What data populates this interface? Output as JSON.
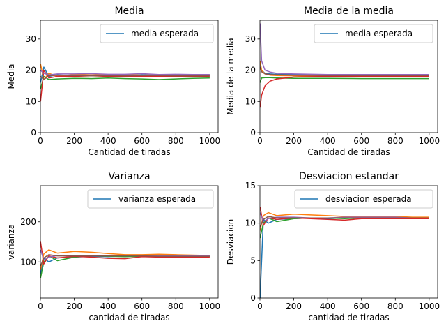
{
  "chart_data": [
    {
      "type": "line",
      "title": "Media",
      "xlabel": "Cantidad de tiradas",
      "ylabel": "Media",
      "xlim": [
        0,
        1050
      ],
      "ylim": [
        0,
        36
      ],
      "xticks": [
        0,
        200,
        400,
        600,
        800,
        1000
      ],
      "yticks": [
        0,
        10,
        20,
        30
      ],
      "legend": {
        "label": "media esperada",
        "placement": "top-right"
      },
      "expected_value": 18.5,
      "series": [
        {
          "color": "#1f77b4",
          "x": [
            1,
            20,
            50,
            100,
            200,
            300,
            400,
            500,
            600,
            700,
            800,
            900,
            1000
          ],
          "y": [
            16,
            21,
            18,
            18.5,
            18.2,
            18.4,
            18.5,
            18.3,
            18.5,
            18.4,
            18.3,
            18.4,
            18.4
          ]
        },
        {
          "color": "#ff7f0e",
          "x": [
            1,
            20,
            50,
            100,
            200,
            300,
            400,
            500,
            600,
            700,
            800,
            900,
            1000
          ],
          "y": [
            22,
            17,
            19,
            18,
            18.6,
            18.8,
            18.5,
            18.6,
            18.4,
            18.5,
            18.5,
            18.4,
            18.5
          ]
        },
        {
          "color": "#2ca02c",
          "x": [
            1,
            20,
            50,
            100,
            200,
            300,
            400,
            500,
            600,
            700,
            800,
            900,
            1000
          ],
          "y": [
            14,
            18,
            17,
            17.2,
            17.4,
            17.3,
            17.5,
            17.3,
            17.2,
            17.0,
            17.2,
            17.4,
            17.5
          ]
        },
        {
          "color": "#d62728",
          "x": [
            1,
            20,
            50,
            100,
            200,
            300,
            400,
            500,
            600,
            700,
            800,
            900,
            1000
          ],
          "y": [
            10,
            20,
            17.5,
            18,
            18,
            18.2,
            18,
            18.1,
            18,
            18.1,
            18,
            18.0,
            18.0
          ]
        },
        {
          "color": "#9467bd",
          "x": [
            1,
            20,
            50,
            100,
            200,
            300,
            400,
            500,
            600,
            700,
            800,
            900,
            1000
          ],
          "y": [
            20,
            19,
            18.5,
            18.8,
            18.8,
            18.9,
            18.7,
            18.7,
            18.9,
            18.6,
            18.7,
            18.6,
            18.6
          ]
        },
        {
          "color": "#8c564b",
          "x": [
            1,
            20,
            50,
            100,
            200,
            300,
            400,
            500,
            600,
            700,
            800,
            900,
            1000
          ],
          "y": [
            18,
            17,
            18.2,
            18.4,
            18.3,
            18.2,
            18.3,
            18.2,
            18.3,
            18.3,
            18.2,
            18.2,
            18.2
          ]
        }
      ]
    },
    {
      "type": "line",
      "title": "Media de la media",
      "xlabel": "Cantidad de tiradas",
      "ylabel": "Media de la media",
      "xlim": [
        0,
        1050
      ],
      "ylim": [
        0,
        36
      ],
      "xticks": [
        0,
        200,
        400,
        600,
        800,
        1000
      ],
      "yticks": [
        0,
        10,
        20,
        30
      ],
      "legend": {
        "label": "media esperada",
        "placement": "top-right"
      },
      "expected_value": 18.5,
      "series": [
        {
          "color": "#1f77b4",
          "x": [
            1,
            10,
            30,
            60,
            100,
            200,
            400,
            600,
            800,
            1000
          ],
          "y": [
            22,
            20,
            19,
            18.8,
            18.7,
            18.6,
            18.5,
            18.5,
            18.5,
            18.5
          ]
        },
        {
          "color": "#ff7f0e",
          "x": [
            1,
            10,
            30,
            60,
            100,
            200,
            400,
            600,
            800,
            1000
          ],
          "y": [
            23,
            20,
            18.8,
            18.4,
            18.3,
            18.2,
            18.1,
            18.1,
            18.1,
            18.1
          ]
        },
        {
          "color": "#2ca02c",
          "x": [
            1,
            10,
            30,
            60,
            100,
            200,
            400,
            600,
            800,
            1000
          ],
          "y": [
            16,
            17.5,
            17.6,
            17.6,
            17.5,
            17.4,
            17.4,
            17.3,
            17.3,
            17.3
          ]
        },
        {
          "color": "#d62728",
          "x": [
            1,
            10,
            30,
            60,
            100,
            200,
            400,
            600,
            800,
            1000
          ],
          "y": [
            8,
            12,
            15,
            16.5,
            17.2,
            17.8,
            18.0,
            18.0,
            18.0,
            18.0
          ]
        },
        {
          "color": "#9467bd",
          "x": [
            1,
            10,
            30,
            60,
            100,
            200,
            400,
            600,
            800,
            1000
          ],
          "y": [
            35,
            23,
            20,
            19.4,
            19.0,
            18.8,
            18.6,
            18.6,
            18.6,
            18.6
          ]
        },
        {
          "color": "#8c564b",
          "x": [
            1,
            10,
            30,
            60,
            100,
            200,
            400,
            600,
            800,
            1000
          ],
          "y": [
            21,
            19.5,
            18.8,
            18.6,
            18.5,
            18.4,
            18.3,
            18.3,
            18.3,
            18.3
          ]
        }
      ]
    },
    {
      "type": "line",
      "title": "Varianza",
      "xlabel": "cantidad de tiradas",
      "ylabel": "varianza",
      "xlim": [
        0,
        1050
      ],
      "ylim": [
        10,
        290
      ],
      "xticks": [
        0,
        200,
        400,
        600,
        800,
        1000
      ],
      "yticks": [
        100,
        200
      ],
      "legend": {
        "label": "varianza esperada",
        "placement": "top-right"
      },
      "expected_value": 114.6,
      "series": [
        {
          "color": "#1f77b4",
          "x": [
            1,
            20,
            50,
            100,
            200,
            300,
            400,
            500,
            600,
            700,
            800,
            900,
            1000
          ],
          "y": [
            70,
            110,
            100,
            110,
            112,
            114,
            113,
            115,
            116,
            115,
            115,
            114,
            114
          ]
        },
        {
          "color": "#ff7f0e",
          "x": [
            1,
            20,
            50,
            100,
            200,
            300,
            400,
            500,
            600,
            700,
            800,
            900,
            1000
          ],
          "y": [
            80,
            120,
            130,
            122,
            126,
            124,
            121,
            118,
            118,
            119,
            118,
            117,
            116
          ]
        },
        {
          "color": "#2ca02c",
          "x": [
            1,
            20,
            50,
            100,
            200,
            300,
            400,
            500,
            600,
            700,
            800,
            900,
            1000
          ],
          "y": [
            60,
            100,
            115,
            103,
            112,
            115,
            114,
            113,
            114,
            113,
            114,
            114,
            114
          ]
        },
        {
          "color": "#d62728",
          "x": [
            1,
            20,
            50,
            100,
            200,
            300,
            400,
            500,
            600,
            700,
            800,
            900,
            1000
          ],
          "y": [
            150,
            95,
            115,
            110,
            114,
            112,
            109,
            108,
            113,
            112,
            112,
            112,
            112
          ]
        },
        {
          "color": "#9467bd",
          "x": [
            1,
            20,
            50,
            100,
            200,
            300,
            400,
            500,
            600,
            700,
            800,
            900,
            1000
          ],
          "y": [
            130,
            105,
            112,
            116,
            116,
            115,
            115,
            116,
            116,
            116,
            116,
            115,
            115
          ]
        },
        {
          "color": "#8c564b",
          "x": [
            1,
            20,
            50,
            100,
            200,
            300,
            400,
            500,
            600,
            700,
            800,
            900,
            1000
          ],
          "y": [
            90,
            110,
            118,
            115,
            115,
            115,
            115,
            115,
            115,
            114,
            114,
            114,
            114
          ]
        }
      ]
    },
    {
      "type": "line",
      "title": "Desviacion estandar",
      "xlabel": "cantidad de tiradas",
      "ylabel": "Desviacion",
      "xlim": [
        0,
        1050
      ],
      "ylim": [
        0,
        15
      ],
      "xticks": [
        0,
        200,
        400,
        600,
        800,
        1000
      ],
      "yticks": [
        0,
        5,
        10,
        15
      ],
      "legend": {
        "label": "desviacion esperada",
        "placement": "top-right"
      },
      "expected_value": 10.7,
      "series": [
        {
          "color": "#1f77b4",
          "x": [
            1,
            20,
            50,
            100,
            200,
            300,
            400,
            500,
            600,
            700,
            800,
            900,
            1000
          ],
          "y": [
            0,
            10.5,
            10.0,
            10.5,
            10.6,
            10.7,
            10.6,
            10.7,
            10.8,
            10.7,
            10.7,
            10.7,
            10.7
          ]
        },
        {
          "color": "#ff7f0e",
          "x": [
            1,
            20,
            50,
            100,
            200,
            300,
            400,
            500,
            600,
            700,
            800,
            900,
            1000
          ],
          "y": [
            9,
            11,
            11.4,
            11.0,
            11.2,
            11.1,
            11.0,
            10.9,
            10.9,
            10.9,
            10.9,
            10.8,
            10.8
          ]
        },
        {
          "color": "#2ca02c",
          "x": [
            1,
            20,
            50,
            100,
            200,
            300,
            400,
            500,
            600,
            700,
            800,
            900,
            1000
          ],
          "y": [
            8,
            10,
            10.7,
            10.2,
            10.6,
            10.7,
            10.7,
            10.6,
            10.7,
            10.6,
            10.7,
            10.7,
            10.7
          ]
        },
        {
          "color": "#d62728",
          "x": [
            1,
            20,
            50,
            100,
            200,
            300,
            400,
            500,
            600,
            700,
            800,
            900,
            1000
          ],
          "y": [
            12.2,
            9.7,
            10.7,
            10.5,
            10.7,
            10.6,
            10.5,
            10.4,
            10.6,
            10.6,
            10.6,
            10.6,
            10.6
          ]
        },
        {
          "color": "#9467bd",
          "x": [
            1,
            20,
            50,
            100,
            200,
            300,
            400,
            500,
            600,
            700,
            800,
            900,
            1000
          ],
          "y": [
            11.4,
            10.2,
            10.6,
            10.8,
            10.8,
            10.7,
            10.7,
            10.8,
            10.8,
            10.8,
            10.8,
            10.7,
            10.7
          ]
        },
        {
          "color": "#8c564b",
          "x": [
            1,
            20,
            50,
            100,
            200,
            300,
            400,
            500,
            600,
            700,
            800,
            900,
            1000
          ],
          "y": [
            9.5,
            10.5,
            10.9,
            10.7,
            10.7,
            10.7,
            10.7,
            10.7,
            10.7,
            10.7,
            10.7,
            10.7,
            10.7
          ]
        }
      ]
    }
  ]
}
